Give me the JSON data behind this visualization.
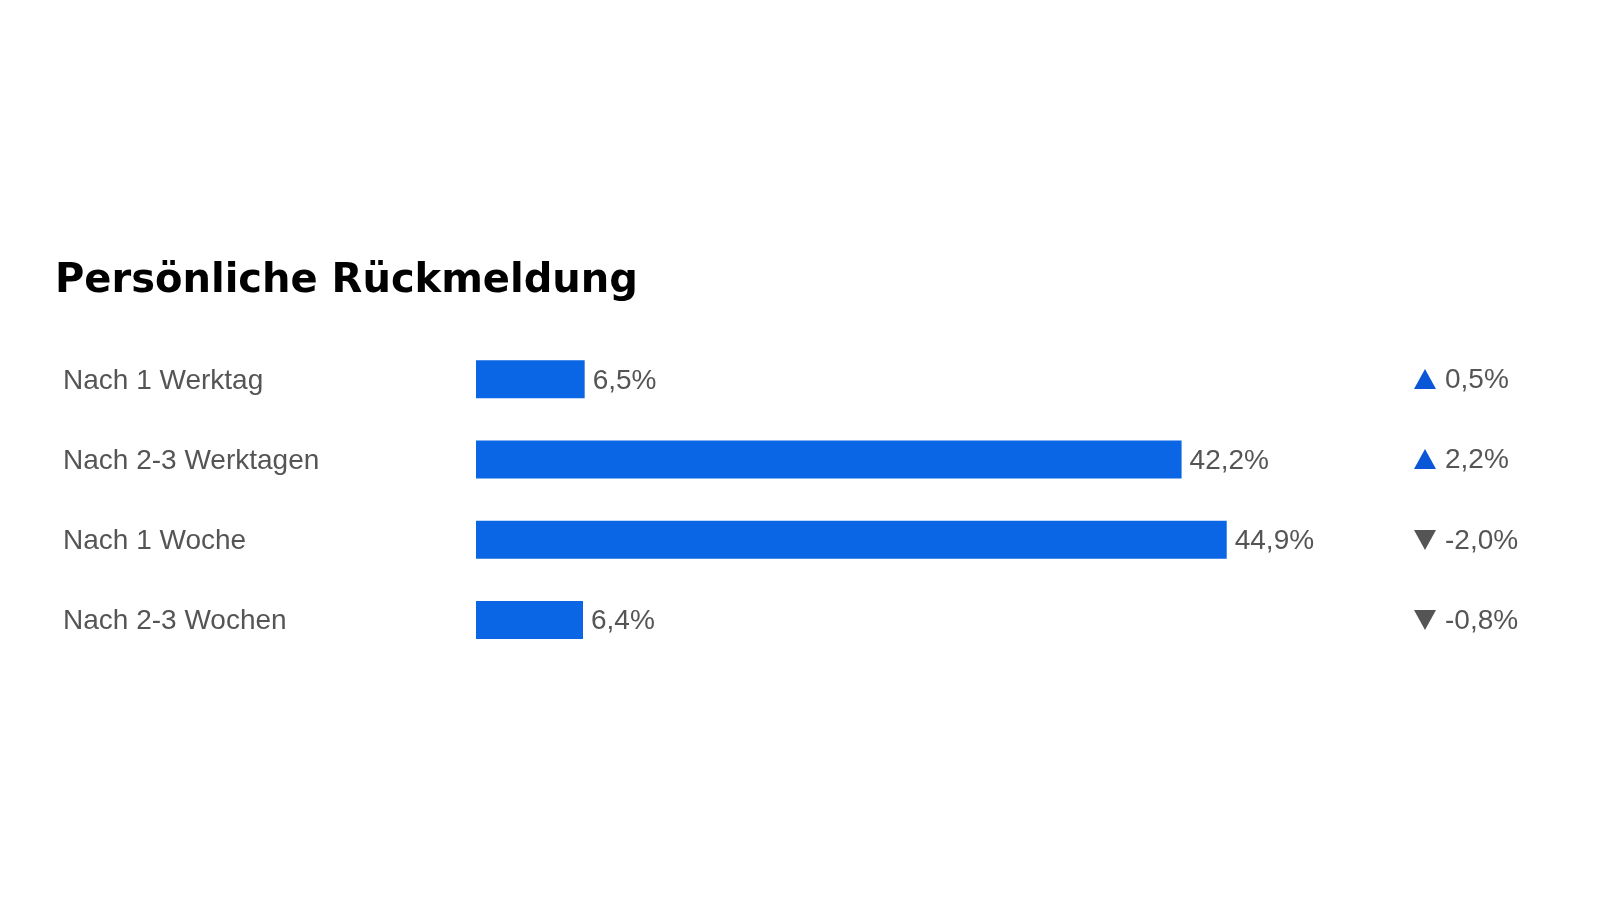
{
  "chart_data": {
    "type": "bar",
    "orientation": "horizontal",
    "title": "Persönliche Rückmeldung",
    "categories": [
      "Nach 1 Werktag",
      "Nach 2-3 Werktagen",
      "Nach 1 Woche",
      "Nach 2-3 Wochen"
    ],
    "values": [
      6.5,
      42.2,
      44.9,
      6.4
    ],
    "color": "#0a66e4",
    "value_labels": [
      "6,5%",
      "42,2%",
      "44,9%",
      "6,4%"
    ],
    "annotations": [
      "0,5%",
      "2,2%",
      "-2,0%",
      "-0,8%"
    ],
    "grid": false
  }
}
